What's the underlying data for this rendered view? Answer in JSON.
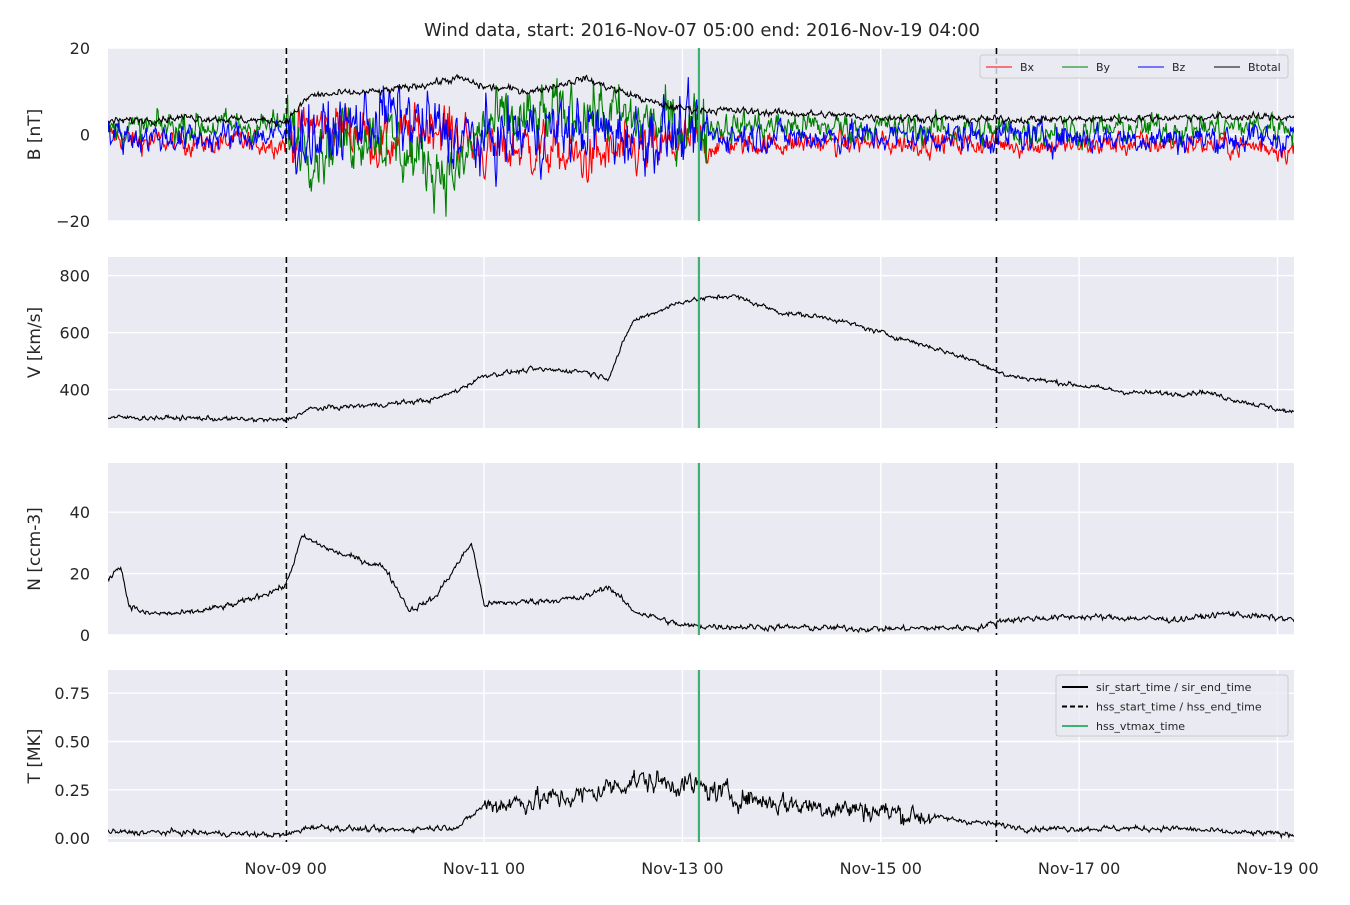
{
  "figure": {
    "title": "Wind data, start: 2016-Nov-07 05:00  end: 2016-Nov-19 04:00"
  },
  "colors": {
    "panel_bg": "#EAEAF2",
    "grid": "#FFFFFF",
    "bx": "#FF0000",
    "by": "#008000",
    "bz": "#0000FF",
    "btotal": "#000000",
    "vtmax": "#3CB371",
    "text": "#262626"
  },
  "chart_data": {
    "type": "line",
    "x_unit": "hours since 2016-Nov-07 05:00",
    "xlim": [
      "2016-11-07 05:00",
      "2016-11-19 04:00"
    ],
    "xticks": [
      {
        "time": "2016-11-09 00:00",
        "label": "Nov-09 00"
      },
      {
        "time": "2016-11-11 00:00",
        "label": "Nov-11 00"
      },
      {
        "time": "2016-11-13 00:00",
        "label": "Nov-13 00"
      },
      {
        "time": "2016-11-15 00:00",
        "label": "Nov-15 00"
      },
      {
        "time": "2016-11-17 00:00",
        "label": "Nov-17 00"
      },
      {
        "time": "2016-11-19 00:00",
        "label": "Nov-19 00"
      }
    ],
    "markers": {
      "hss_start_time": "2016-11-09 00:10",
      "hss_end_time": "2016-11-16 04:00",
      "hss_vtmax_time": "2016-11-13 04:00"
    },
    "panels": [
      {
        "id": "B",
        "ylabel": "B [nT]",
        "ylim": [
          -20,
          20
        ],
        "yticks": [
          {
            "v": -20,
            "label": "−20"
          },
          {
            "v": 0,
            "label": "0"
          },
          {
            "v": 20,
            "label": "20"
          }
        ],
        "legend": {
          "placement": "top-right",
          "ncol": 4,
          "entries": [
            "Bx",
            "By",
            "Bz",
            "Btotal"
          ]
        },
        "series": [
          {
            "name": "Bx",
            "color": "#FF0000",
            "noise": 2.2,
            "points": [
              [
                "2016-11-07 05:00",
                0
              ],
              [
                "2016-11-07 12:00",
                -1.5
              ],
              [
                "2016-11-08 06:00",
                -2
              ],
              [
                "2016-11-09 00:00",
                -2
              ],
              [
                "2016-11-09 06:00",
                2
              ],
              [
                "2016-11-09 18:00",
                1
              ],
              [
                "2016-11-10 00:00",
                -3
              ],
              [
                "2016-11-10 12:00",
                3
              ],
              [
                "2016-11-11 00:00",
                -4
              ],
              [
                "2016-11-11 12:00",
                -3
              ],
              [
                "2016-11-12 00:00",
                -6
              ],
              [
                "2016-11-12 12:00",
                -4
              ],
              [
                "2016-11-13 00:00",
                -2.5
              ],
              [
                "2016-11-14 00:00",
                -2
              ],
              [
                "2016-11-15 00:00",
                -2
              ],
              [
                "2016-11-16 00:00",
                -2
              ],
              [
                "2016-11-17 00:00",
                -2.5
              ],
              [
                "2016-11-18 00:00",
                -2
              ],
              [
                "2016-11-19 00:00",
                -3
              ],
              [
                "2016-11-19 04:00",
                -3.5
              ]
            ]
          },
          {
            "name": "By",
            "color": "#008000",
            "noise": 2.8,
            "points": [
              [
                "2016-11-07 05:00",
                1
              ],
              [
                "2016-11-08 00:00",
                2
              ],
              [
                "2016-11-09 00:00",
                2
              ],
              [
                "2016-11-09 08:00",
                -3
              ],
              [
                "2016-11-09 20:00",
                2
              ],
              [
                "2016-11-10 06:00",
                -5
              ],
              [
                "2016-11-10 18:00",
                -9
              ],
              [
                "2016-11-11 00:00",
                2
              ],
              [
                "2016-11-11 12:00",
                3
              ],
              [
                "2016-11-12 00:00",
                6
              ],
              [
                "2016-11-12 12:00",
                3
              ],
              [
                "2016-11-13 00:00",
                2
              ],
              [
                "2016-11-14 00:00",
                2
              ],
              [
                "2016-11-15 00:00",
                1.5
              ],
              [
                "2016-11-16 00:00",
                1
              ],
              [
                "2016-11-17 00:00",
                1
              ],
              [
                "2016-11-18 00:00",
                1.5
              ],
              [
                "2016-11-19 00:00",
                2
              ],
              [
                "2016-11-19 04:00",
                2
              ]
            ]
          },
          {
            "name": "Bz",
            "color": "#0000FF",
            "noise": 2.8,
            "points": [
              [
                "2016-11-07 05:00",
                0
              ],
              [
                "2016-11-08 00:00",
                -1
              ],
              [
                "2016-11-09 00:00",
                0
              ],
              [
                "2016-11-09 08:00",
                -1
              ],
              [
                "2016-11-10 00:00",
                5
              ],
              [
                "2016-11-10 12:00",
                1
              ],
              [
                "2016-11-11 00:00",
                -2
              ],
              [
                "2016-11-11 12:00",
                1
              ],
              [
                "2016-11-12 00:00",
                1
              ],
              [
                "2016-11-12 12:00",
                0
              ],
              [
                "2016-11-13 00:00",
                0
              ],
              [
                "2016-11-14 00:00",
                -0.5
              ],
              [
                "2016-11-15 00:00",
                -0.5
              ],
              [
                "2016-11-16 00:00",
                -0.5
              ],
              [
                "2016-11-17 00:00",
                -0.5
              ],
              [
                "2016-11-18 00:00",
                -1
              ],
              [
                "2016-11-19 00:00",
                -1
              ],
              [
                "2016-11-19 04:00",
                0
              ]
            ]
          },
          {
            "name": "Btotal",
            "color": "#000000",
            "noise": 0.7,
            "points": [
              [
                "2016-11-07 05:00",
                3
              ],
              [
                "2016-11-08 00:00",
                4
              ],
              [
                "2016-11-09 00:00",
                3
              ],
              [
                "2016-11-09 06:00",
                9
              ],
              [
                "2016-11-10 00:00",
                10
              ],
              [
                "2016-11-10 18:00",
                13
              ],
              [
                "2016-11-11 00:00",
                11
              ],
              [
                "2016-11-11 12:00",
                10
              ],
              [
                "2016-11-12 00:00",
                13
              ],
              [
                "2016-11-12 06:00",
                11
              ],
              [
                "2016-11-12 18:00",
                7
              ],
              [
                "2016-11-13 00:00",
                6
              ],
              [
                "2016-11-14 00:00",
                5
              ],
              [
                "2016-11-15 00:00",
                4
              ],
              [
                "2016-11-16 00:00",
                3.5
              ],
              [
                "2016-11-17 00:00",
                3.5
              ],
              [
                "2016-11-18 00:00",
                4
              ],
              [
                "2016-11-19 04:00",
                4
              ]
            ]
          }
        ]
      },
      {
        "id": "V",
        "ylabel": "V [km/s]",
        "ylim": [
          265,
          865
        ],
        "yticks": [
          {
            "v": 400,
            "label": "400"
          },
          {
            "v": 600,
            "label": "600"
          },
          {
            "v": 800,
            "label": "800"
          }
        ],
        "series": [
          {
            "name": "V",
            "color": "#000000",
            "noise": 7,
            "points": [
              [
                "2016-11-07 05:00",
                302
              ],
              [
                "2016-11-08 00:00",
                300
              ],
              [
                "2016-11-09 00:00",
                292
              ],
              [
                "2016-11-09 06:00",
                332
              ],
              [
                "2016-11-10 00:00",
                348
              ],
              [
                "2016-11-10 12:00",
                365
              ],
              [
                "2016-11-10 18:00",
                400
              ],
              [
                "2016-11-11 00:00",
                450
              ],
              [
                "2016-11-11 12:00",
                470
              ],
              [
                "2016-11-12 00:00",
                465
              ],
              [
                "2016-11-12 06:00",
                440
              ],
              [
                "2016-11-12 12:00",
                640
              ],
              [
                "2016-11-13 00:00",
                710
              ],
              [
                "2016-11-13 12:00",
                730
              ],
              [
                "2016-11-14 00:00",
                670
              ],
              [
                "2016-11-14 12:00",
                650
              ],
              [
                "2016-11-15 00:00",
                600
              ],
              [
                "2016-11-15 12:00",
                550
              ],
              [
                "2016-11-16 00:00",
                495
              ],
              [
                "2016-11-16 06:00",
                450
              ],
              [
                "2016-11-17 00:00",
                415
              ],
              [
                "2016-11-17 12:00",
                390
              ],
              [
                "2016-11-18 00:00",
                385
              ],
              [
                "2016-11-18 06:00",
                393
              ],
              [
                "2016-11-18 12:00",
                370
              ],
              [
                "2016-11-19 04:00",
                318
              ]
            ]
          }
        ]
      },
      {
        "id": "N",
        "ylabel": "N [ccm-3]",
        "ylim": [
          0,
          56
        ],
        "yticks": [
          {
            "v": 0,
            "label": "0"
          },
          {
            "v": 20,
            "label": "20"
          },
          {
            "v": 40,
            "label": "40"
          }
        ],
        "series": [
          {
            "name": "N",
            "color": "#000000",
            "noise": 0.8,
            "points": [
              [
                "2016-11-07 05:00",
                18
              ],
              [
                "2016-11-07 08:00",
                23
              ],
              [
                "2016-11-07 10:00",
                10
              ],
              [
                "2016-11-07 14:00",
                7
              ],
              [
                "2016-11-08 00:00",
                7
              ],
              [
                "2016-11-08 12:00",
                10
              ],
              [
                "2016-11-09 00:00",
                16
              ],
              [
                "2016-11-09 04:00",
                32
              ],
              [
                "2016-11-09 12:00",
                27
              ],
              [
                "2016-11-10 00:00",
                22
              ],
              [
                "2016-11-10 06:00",
                8
              ],
              [
                "2016-11-10 12:00",
                12
              ],
              [
                "2016-11-10 18:00",
                24
              ],
              [
                "2016-11-10 21:00",
                30
              ],
              [
                "2016-11-11 00:00",
                10
              ],
              [
                "2016-11-12 00:00",
                12
              ],
              [
                "2016-11-12 06:00",
                16
              ],
              [
                "2016-11-12 12:00",
                8
              ],
              [
                "2016-11-13 00:00",
                3
              ],
              [
                "2016-11-14 00:00",
                2.5
              ],
              [
                "2016-11-15 00:00",
                2
              ],
              [
                "2016-11-16 00:00",
                2.5
              ],
              [
                "2016-11-16 06:00",
                5
              ],
              [
                "2016-11-17 00:00",
                6
              ],
              [
                "2016-11-18 00:00",
                5
              ],
              [
                "2016-11-18 12:00",
                7
              ],
              [
                "2016-11-19 04:00",
                5
              ]
            ]
          }
        ]
      },
      {
        "id": "T",
        "ylabel": "T [MK]",
        "ylim": [
          -0.02,
          0.87
        ],
        "yticks": [
          {
            "v": 0,
            "label": "0.00"
          },
          {
            "v": 0.25,
            "label": "0.25"
          },
          {
            "v": 0.5,
            "label": "0.50"
          },
          {
            "v": 0.75,
            "label": "0.75"
          }
        ],
        "legend": {
          "placement": "top-right",
          "entries": [
            "sir_start_time / sir_end_time",
            "hss_start_time / hss_end_time",
            "hss_vtmax_time"
          ]
        },
        "series": [
          {
            "name": "T",
            "color": "#000000",
            "noise": 0.012,
            "points": [
              [
                "2016-11-07 05:00",
                0.03
              ],
              [
                "2016-11-08 00:00",
                0.03
              ],
              [
                "2016-11-09 00:00",
                0.015
              ],
              [
                "2016-11-09 06:00",
                0.06
              ],
              [
                "2016-11-10 00:00",
                0.04
              ],
              [
                "2016-11-10 18:00",
                0.06
              ],
              [
                "2016-11-11 00:00",
                0.17
              ],
              [
                "2016-11-12 00:00",
                0.22
              ],
              [
                "2016-11-12 12:00",
                0.3
              ],
              [
                "2016-11-13 00:00",
                0.28
              ],
              [
                "2016-11-13 12:00",
                0.22
              ],
              [
                "2016-11-14 00:00",
                0.18
              ],
              [
                "2016-11-15 00:00",
                0.14
              ],
              [
                "2016-11-16 00:00",
                0.08
              ],
              [
                "2016-11-16 12:00",
                0.05
              ],
              [
                "2016-11-17 00:00",
                0.05
              ],
              [
                "2016-11-18 00:00",
                0.05
              ],
              [
                "2016-11-18 12:00",
                0.03
              ],
              [
                "2016-11-19 04:00",
                0.02
              ]
            ]
          }
        ]
      }
    ]
  }
}
